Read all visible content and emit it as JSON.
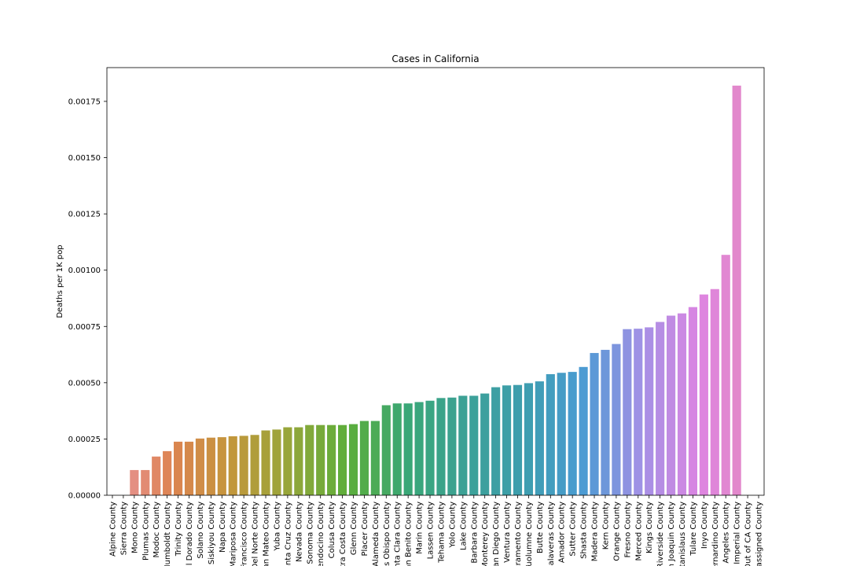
{
  "chart_data": {
    "type": "bar",
    "title": "Cases in California",
    "xlabel": "",
    "ylabel": "Deaths per 1K pop",
    "ylim": [
      0,
      0.0019
    ],
    "yticks": [
      "0.00000",
      "0.00025",
      "0.00050",
      "0.00075",
      "0.00100",
      "0.00125",
      "0.00150",
      "0.00175"
    ],
    "grid": false,
    "categories": [
      "Alpine County",
      "Sierra County",
      "Mono County",
      "Plumas County",
      "Modoc County",
      "Humboldt County",
      "Trinity County",
      "El Dorado County",
      "Solano County",
      "Siskiyou County",
      "Napa County",
      "Mariposa County",
      "San Francisco County",
      "Del Norte County",
      "San Mateo County",
      "Yuba County",
      "Santa Cruz County",
      "Nevada County",
      "Sonoma County",
      "Mendocino County",
      "Colusa County",
      "Contra Costa County",
      "Glenn County",
      "Placer County",
      "Alameda County",
      "San Luis Obispo County",
      "Santa Clara County",
      "San Benito County",
      "Marin County",
      "Lassen County",
      "Tehama County",
      "Yolo County",
      "Lake County",
      "Santa Barbara County",
      "Monterey County",
      "San Diego County",
      "Ventura County",
      "Sacramento County",
      "Tuolumne County",
      "Butte County",
      "Calaveras County",
      "Amador County",
      "Sutter County",
      "Shasta County",
      "Madera County",
      "Kern County",
      "Orange County",
      "Fresno County",
      "Merced County",
      "Kings County",
      "Riverside County",
      "San Joaquin County",
      "Stanislaus County",
      "Tulare County",
      "Inyo County",
      "San Bernardino County",
      "Los Angeles County",
      "Imperial County",
      "Out of CA County",
      "Unassigned County"
    ],
    "values": [
      0,
      0,
      0.000112,
      0.000112,
      0.000172,
      0.000196,
      0.000238,
      0.000238,
      0.000252,
      0.000256,
      0.000258,
      0.000262,
      0.000264,
      0.000268,
      0.000288,
      0.000292,
      0.000302,
      0.000302,
      0.000312,
      0.000312,
      0.000312,
      0.000312,
      0.000316,
      0.00033,
      0.00033,
      0.0004,
      0.000408,
      0.000408,
      0.000414,
      0.00042,
      0.000432,
      0.000434,
      0.000442,
      0.000442,
      0.000452,
      0.00048,
      0.000488,
      0.00049,
      0.000498,
      0.000506,
      0.000538,
      0.000544,
      0.000548,
      0.00057,
      0.000632,
      0.000646,
      0.000672,
      0.000738,
      0.00074,
      0.000746,
      0.00077,
      0.000798,
      0.000808,
      0.000836,
      0.000892,
      0.000916,
      0.001068,
      0.00182,
      0,
      0
    ],
    "palette_hue_stops": [
      "#e8959e",
      "#dd8452",
      "#c3963b",
      "#97a63a",
      "#5cae3a",
      "#3aa776",
      "#3ca196",
      "#3e9eae",
      "#4a9bd3",
      "#a391e6",
      "#dd85e1",
      "#e58ac0"
    ]
  }
}
